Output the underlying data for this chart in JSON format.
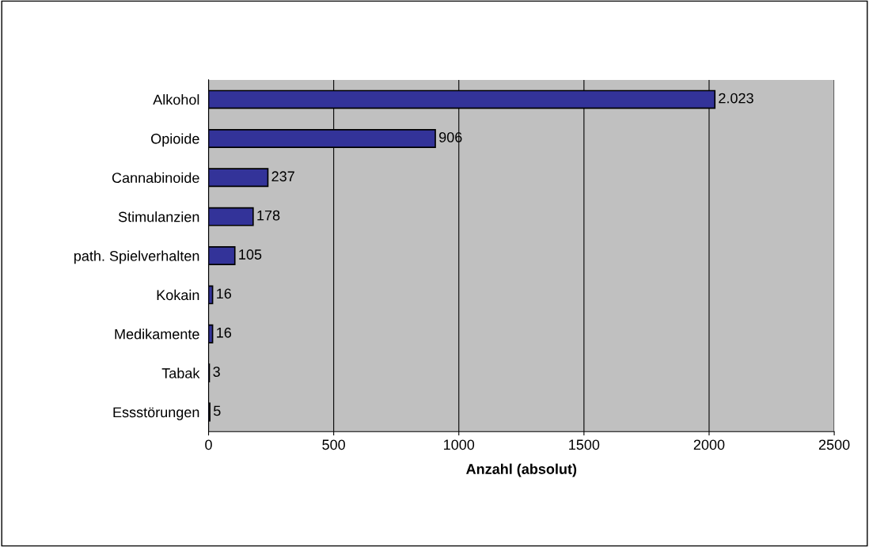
{
  "chart_data": {
    "type": "bar",
    "orientation": "horizontal",
    "xlabel": "Anzahl (absolut)",
    "categories": [
      "Alkohol",
      "Opioide",
      "Cannabinoide",
      "Stimulanzien",
      "path. Spielverhalten",
      "Kokain",
      "Medikamente",
      "Tabak",
      "Essstörungen"
    ],
    "values": [
      2023,
      906,
      237,
      178,
      105,
      16,
      16,
      3,
      5
    ],
    "value_labels": [
      "2.023",
      "906",
      "237",
      "178",
      "105",
      "16",
      "16",
      "3",
      "5"
    ],
    "color": "#333399",
    "xlim": [
      0,
      2500
    ],
    "xticks": [
      0,
      500,
      1000,
      1500,
      2000,
      2500
    ],
    "grid": "x"
  }
}
